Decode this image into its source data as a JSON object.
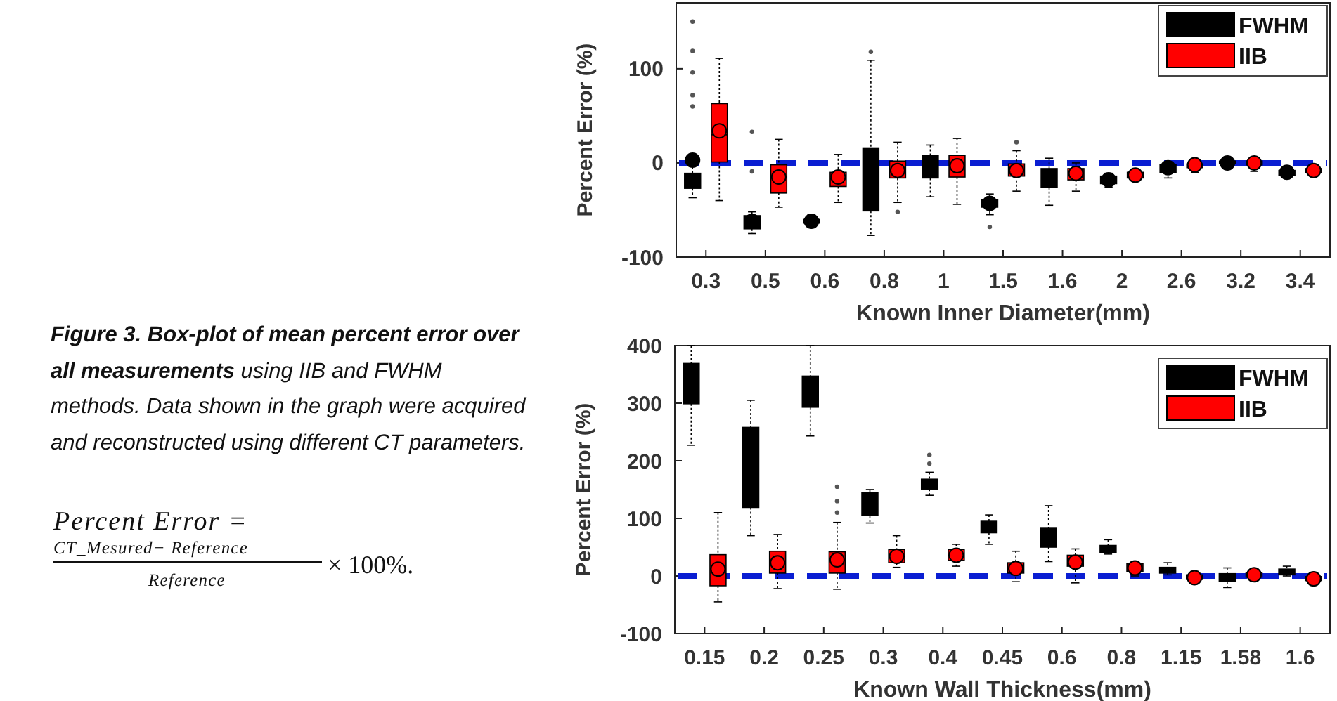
{
  "chart_data": [
    {
      "type": "box",
      "xlabel": "Known Inner Diameter(mm)",
      "ylabel": "Percent Error (%)",
      "categories": [
        "0.3",
        "0.5",
        "0.6",
        "0.8",
        "1",
        "1.5",
        "1.6",
        "2",
        "2.6",
        "3.2",
        "3.4"
      ],
      "ylim": [
        -100,
        170
      ],
      "yticks": [
        -100,
        0,
        100
      ],
      "legend": "top right",
      "ref_lines": [
        {
          "axis": "y",
          "value": 0,
          "color": "#0a1ed2",
          "line_style": "dashed"
        }
      ],
      "annotations": [
        "Figure 3. Box-plot of mean percent error over all measurements",
        "using IIB and FWHM methods. Data shown in the graph were acquired and reconstructed using different CT parameters.",
        "Percent Error =",
        "CT_Mesured− Reference",
        "Reference",
        "× 100%."
      ],
      "series": [
        {
          "name": "FWHM",
          "color": "#000000",
          "boxes": [
            {
              "low": -37,
              "q1": -27,
              "median": -18,
              "q3": -11,
              "high": 5,
              "mean": 3,
              "outliers": [
                60,
                72,
                96,
                119,
                150
              ]
            },
            {
              "low": -75,
              "q1": -70,
              "median": -63,
              "q3": -56,
              "high": -52,
              "mean": -62,
              "outliers": [
                -9,
                33
              ]
            },
            {
              "low": -66,
              "q1": -64,
              "median": -62,
              "q3": -60,
              "high": -55,
              "mean": -62
            },
            {
              "low": -77,
              "q1": -51,
              "median": -10,
              "q3": 16,
              "high": 109,
              "mean": -10,
              "outliers": [
                118
              ]
            },
            {
              "low": -36,
              "q1": -16,
              "median": -3,
              "q3": 8,
              "high": 19,
              "mean": -3
            },
            {
              "low": -55,
              "q1": -47,
              "median": -43,
              "q3": -39,
              "high": -33,
              "mean": -43,
              "outliers": [
                -68
              ]
            },
            {
              "low": -45,
              "q1": -26,
              "median": -16,
              "q3": -6,
              "high": 5,
              "mean": -16
            },
            {
              "low": -26,
              "q1": -22,
              "median": -18,
              "q3": -14,
              "high": -11,
              "mean": -18
            },
            {
              "low": -16,
              "q1": -10,
              "median": -5,
              "q3": -2,
              "high": 0,
              "mean": -5
            },
            {
              "low": -2,
              "q1": -1,
              "median": 0,
              "q3": 2,
              "high": 3,
              "mean": 0
            },
            {
              "low": -14,
              "q1": -13,
              "median": -10,
              "q3": -8,
              "high": -7,
              "mean": -10
            }
          ]
        },
        {
          "name": "IIB",
          "color": "#ff0000",
          "boxes": [
            {
              "low": -40,
              "q1": 1,
              "median": 30,
              "q3": 63,
              "high": 111,
              "mean": 34
            },
            {
              "low": -47,
              "q1": -32,
              "median": -15,
              "q3": -2,
              "high": 25,
              "mean": -15
            },
            {
              "low": -42,
              "q1": -25,
              "median": -17,
              "q3": -10,
              "high": 9,
              "mean": -15
            },
            {
              "low": -42,
              "q1": -16,
              "median": -8,
              "q3": 2,
              "high": 22,
              "mean": -8,
              "outliers": [
                -52
              ]
            },
            {
              "low": -44,
              "q1": -15,
              "median": -3,
              "q3": 8,
              "high": 26,
              "mean": -3
            },
            {
              "low": -30,
              "q1": -14,
              "median": -8,
              "q3": -1,
              "high": 13,
              "mean": -8,
              "outliers": [
                22
              ]
            },
            {
              "low": -30,
              "q1": -18,
              "median": -11,
              "q3": -6,
              "high": 0,
              "mean": -11
            },
            {
              "low": -17,
              "q1": -16,
              "median": -13,
              "q3": -10,
              "high": -9,
              "mean": -13
            },
            {
              "low": -10,
              "q1": -5,
              "median": -2,
              "q3": -1,
              "high": 1,
              "mean": -2
            },
            {
              "low": -9,
              "q1": -2,
              "median": 0,
              "q3": 2,
              "high": 4,
              "mean": 0
            },
            {
              "low": -11,
              "q1": -10,
              "median": -8,
              "q3": -6,
              "high": -5,
              "mean": -8
            }
          ]
        }
      ]
    },
    {
      "type": "box",
      "xlabel": "Known Wall Thickness(mm)",
      "ylabel": "Percent Error (%)",
      "categories": [
        "0.15",
        "0.2",
        "0.25",
        "0.3",
        "0.4",
        "0.45",
        "0.6",
        "0.8",
        "1.15",
        "1.58",
        "1.6"
      ],
      "ylim": [
        -100,
        400
      ],
      "yticks": [
        -100,
        0,
        100,
        200,
        300,
        400
      ],
      "legend": "top right",
      "ref_lines": [
        {
          "axis": "y",
          "value": 0,
          "color": "#0a1ed2",
          "line_style": "dashed"
        }
      ],
      "series": [
        {
          "name": "FWHM",
          "color": "#000000",
          "boxes": [
            {
              "low": 227,
              "q1": 299,
              "median": 330,
              "q3": 369,
              "high": 400
            },
            {
              "low": 70,
              "q1": 119,
              "median": 190,
              "q3": 258,
              "high": 305
            },
            {
              "low": 243,
              "q1": 293,
              "median": 320,
              "q3": 347,
              "high": 400
            },
            {
              "low": 92,
              "q1": 105,
              "median": 125,
              "q3": 145,
              "high": 150
            },
            {
              "low": 140,
              "q1": 151,
              "median": 158,
              "q3": 168,
              "high": 180,
              "outliers": [
                195,
                210
              ]
            },
            {
              "low": 55,
              "q1": 75,
              "median": 85,
              "q3": 95,
              "high": 106
            },
            {
              "low": 25,
              "q1": 50,
              "median": 65,
              "q3": 84,
              "high": 122
            },
            {
              "low": 38,
              "q1": 41,
              "median": 47,
              "q3": 53,
              "high": 63
            },
            {
              "low": 2,
              "q1": 5,
              "median": 10,
              "q3": 15,
              "high": 23
            },
            {
              "low": -20,
              "q1": -10,
              "median": -3,
              "q3": 4,
              "high": 14
            },
            {
              "low": 0,
              "q1": 2,
              "median": 6,
              "q3": 12,
              "high": 17
            }
          ]
        },
        {
          "name": "IIB",
          "color": "#ff0000",
          "boxes": [
            {
              "low": -45,
              "q1": -17,
              "median": 12,
              "q3": 37,
              "high": 110,
              "mean": 12
            },
            {
              "low": -22,
              "q1": 5,
              "median": 23,
              "q3": 43,
              "high": 72,
              "mean": 23
            },
            {
              "low": -23,
              "q1": 5,
              "median": 28,
              "q3": 42,
              "high": 93,
              "mean": 28,
              "outliers": [
                110,
                130,
                155
              ]
            },
            {
              "low": 15,
              "q1": 23,
              "median": 34,
              "q3": 46,
              "high": 70,
              "mean": 34
            },
            {
              "low": 17,
              "q1": 27,
              "median": 36,
              "q3": 46,
              "high": 55,
              "mean": 36
            },
            {
              "low": -10,
              "q1": 5,
              "median": 13,
              "q3": 23,
              "high": 43,
              "mean": 13
            },
            {
              "low": -12,
              "q1": 17,
              "median": 24,
              "q3": 36,
              "high": 47,
              "mean": 24
            },
            {
              "low": 0,
              "q1": 8,
              "median": 14,
              "q3": 22,
              "high": 24,
              "mean": 14
            },
            {
              "low": -8,
              "q1": -6,
              "median": -3,
              "q3": 2,
              "high": 8,
              "mean": -3
            },
            {
              "low": -5,
              "q1": -2,
              "median": 2,
              "q3": 6,
              "high": 10,
              "mean": 2
            },
            {
              "low": -10,
              "q1": -8,
              "median": -5,
              "q3": -1,
              "high": 0,
              "mean": -5
            }
          ]
        }
      ]
    }
  ]
}
